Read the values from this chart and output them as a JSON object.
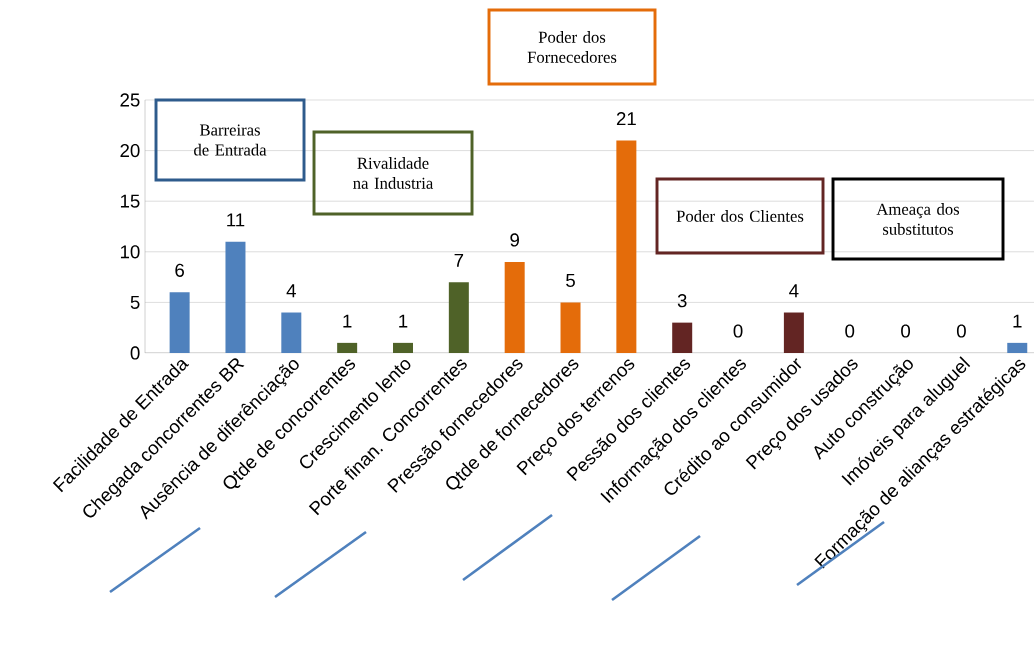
{
  "chart_data": {
    "type": "bar",
    "categories": [
      "Facilidade de Entrada",
      "Chegada concorrentes BR",
      "Ausência de diferênciação",
      "Qtde de concorrentes",
      "Crescimento lento",
      "Porte finan. Concorrentes",
      "Pressão fornecedores",
      "Qtde de fornecedores",
      "Preço dos terrenos",
      "Pessão dos clientes",
      "Informação dos clientes",
      "Crédito ao consumidor",
      "Preço dos usados",
      "Auto construção",
      "Imóveis para aluguel",
      "Formação de alianças estratégicas"
    ],
    "values": [
      6,
      11,
      4,
      1,
      1,
      7,
      9,
      5,
      21,
      3,
      0,
      4,
      0,
      0,
      0,
      1
    ],
    "colors": [
      "#4f81bd",
      "#4f81bd",
      "#4f81bd",
      "#4f6228",
      "#4f6228",
      "#4f6228",
      "#e46c0a",
      "#e46c0a",
      "#e46c0a",
      "#632523",
      "#632523",
      "#632523",
      "#4f81bd",
      "#4f81bd",
      "#4f81bd",
      "#4f81bd"
    ],
    "data_labels": true,
    "ylim": [
      0,
      25
    ],
    "yticks": [
      0,
      5,
      10,
      15,
      20,
      25
    ],
    "grid": "y",
    "annotations": [
      "Barreiras de Entrada",
      "Rivalidade na Industria",
      "Poder dos Fornecedores",
      "Poder dos Clientes",
      "Ameaça dos substitutos"
    ]
  }
}
